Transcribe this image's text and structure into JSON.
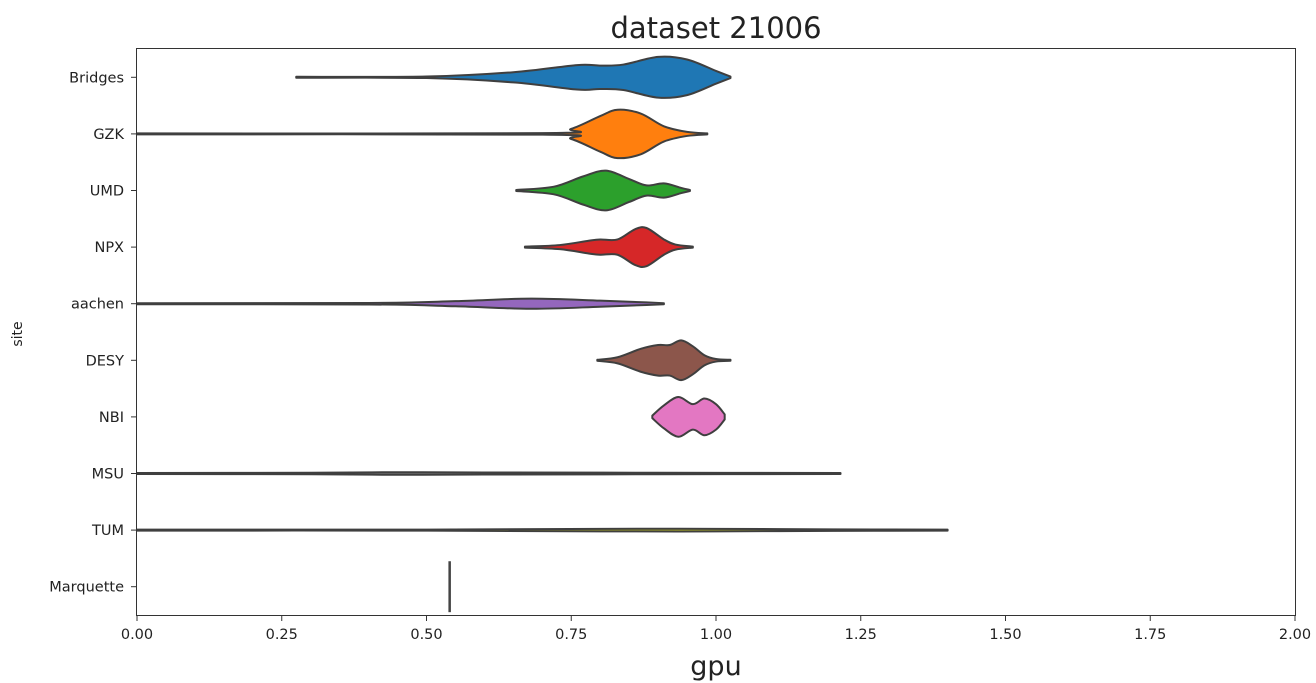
{
  "chart_data": {
    "type": "violin",
    "title": "dataset 21006",
    "xlabel": "gpu",
    "ylabel": "site",
    "xlim": [
      0,
      2
    ],
    "xticks": [
      0,
      0.25,
      0.5,
      0.75,
      1.0,
      1.25,
      1.5,
      1.75,
      2.0
    ],
    "xtick_labels": [
      "0.00",
      "0.25",
      "0.50",
      "0.75",
      "1.00",
      "1.25",
      "1.50",
      "1.75",
      "2.00"
    ],
    "grid": false,
    "categories": [
      "Bridges",
      "GZK",
      "UMD",
      "NPX",
      "aachen",
      "DESY",
      "NBI",
      "MSU",
      "TUM",
      "Marquette"
    ],
    "series": [
      {
        "category": "Bridges",
        "color": "#1f77b4",
        "min": 0.275,
        "max": 1.025,
        "density": [
          [
            0.275,
            0.02
          ],
          [
            0.5,
            0.03
          ],
          [
            0.65,
            0.2
          ],
          [
            0.76,
            0.48
          ],
          [
            0.8,
            0.46
          ],
          [
            0.84,
            0.5
          ],
          [
            0.9,
            0.8
          ],
          [
            0.95,
            0.7
          ],
          [
            1.0,
            0.25
          ],
          [
            1.025,
            0.03
          ]
        ]
      },
      {
        "category": "GZK",
        "color": "#ff7f0e",
        "min": 0.0,
        "max": 0.985,
        "density": [
          [
            0.0,
            0.02
          ],
          [
            0.7,
            0.03
          ],
          [
            0.75,
            0.2
          ],
          [
            0.8,
            0.7
          ],
          [
            0.83,
            0.95
          ],
          [
            0.87,
            0.8
          ],
          [
            0.91,
            0.3
          ],
          [
            0.95,
            0.08
          ],
          [
            0.985,
            0.02
          ]
        ]
      },
      {
        "category": "UMD",
        "color": "#2ca02c",
        "min": 0.655,
        "max": 0.955,
        "density": [
          [
            0.655,
            0.02
          ],
          [
            0.72,
            0.15
          ],
          [
            0.77,
            0.55
          ],
          [
            0.81,
            0.78
          ],
          [
            0.85,
            0.45
          ],
          [
            0.88,
            0.2
          ],
          [
            0.91,
            0.28
          ],
          [
            0.94,
            0.1
          ],
          [
            0.955,
            0.02
          ]
        ]
      },
      {
        "category": "NPX",
        "color": "#d62728",
        "min": 0.67,
        "max": 0.96,
        "density": [
          [
            0.67,
            0.02
          ],
          [
            0.73,
            0.08
          ],
          [
            0.78,
            0.25
          ],
          [
            0.8,
            0.3
          ],
          [
            0.83,
            0.3
          ],
          [
            0.86,
            0.7
          ],
          [
            0.88,
            0.75
          ],
          [
            0.91,
            0.3
          ],
          [
            0.93,
            0.1
          ],
          [
            0.96,
            0.02
          ]
        ]
      },
      {
        "category": "aachen",
        "color": "#9467bd",
        "min": 0.0,
        "max": 0.91,
        "density": [
          [
            0.0,
            0.02
          ],
          [
            0.4,
            0.03
          ],
          [
            0.55,
            0.1
          ],
          [
            0.68,
            0.2
          ],
          [
            0.8,
            0.12
          ],
          [
            0.88,
            0.05
          ],
          [
            0.91,
            0.02
          ]
        ]
      },
      {
        "category": "DESY",
        "color": "#8c564b",
        "min": 0.795,
        "max": 1.025,
        "density": [
          [
            0.795,
            0.02
          ],
          [
            0.83,
            0.12
          ],
          [
            0.87,
            0.45
          ],
          [
            0.9,
            0.6
          ],
          [
            0.92,
            0.6
          ],
          [
            0.94,
            0.78
          ],
          [
            0.96,
            0.55
          ],
          [
            0.98,
            0.2
          ],
          [
            1.0,
            0.05
          ],
          [
            1.025,
            0.02
          ]
        ]
      },
      {
        "category": "NBI",
        "color": "#e377c2",
        "min": 0.89,
        "max": 1.015,
        "density": [
          [
            0.89,
            0.05
          ],
          [
            0.91,
            0.45
          ],
          [
            0.935,
            0.78
          ],
          [
            0.96,
            0.5
          ],
          [
            0.98,
            0.72
          ],
          [
            1.0,
            0.5
          ],
          [
            1.015,
            0.1
          ]
        ]
      },
      {
        "category": "MSU",
        "color": "#7f7f7f",
        "min": 0.0,
        "max": 1.215,
        "density": [
          [
            0.0,
            0.02
          ],
          [
            0.3,
            0.03
          ],
          [
            0.45,
            0.05
          ],
          [
            0.6,
            0.04
          ],
          [
            0.9,
            0.03
          ],
          [
            1.215,
            0.02
          ]
        ]
      },
      {
        "category": "TUM",
        "color": "#bcbd22",
        "min": 0.0,
        "max": 1.4,
        "density": [
          [
            0.0,
            0.02
          ],
          [
            0.5,
            0.02
          ],
          [
            0.8,
            0.05
          ],
          [
            1.0,
            0.05
          ],
          [
            1.2,
            0.03
          ],
          [
            1.4,
            0.02
          ]
        ]
      },
      {
        "category": "Marquette",
        "color": "#17becf",
        "min": 0.54,
        "max": 0.54,
        "density": [
          [
            0.54,
            0.0
          ]
        ]
      }
    ]
  }
}
